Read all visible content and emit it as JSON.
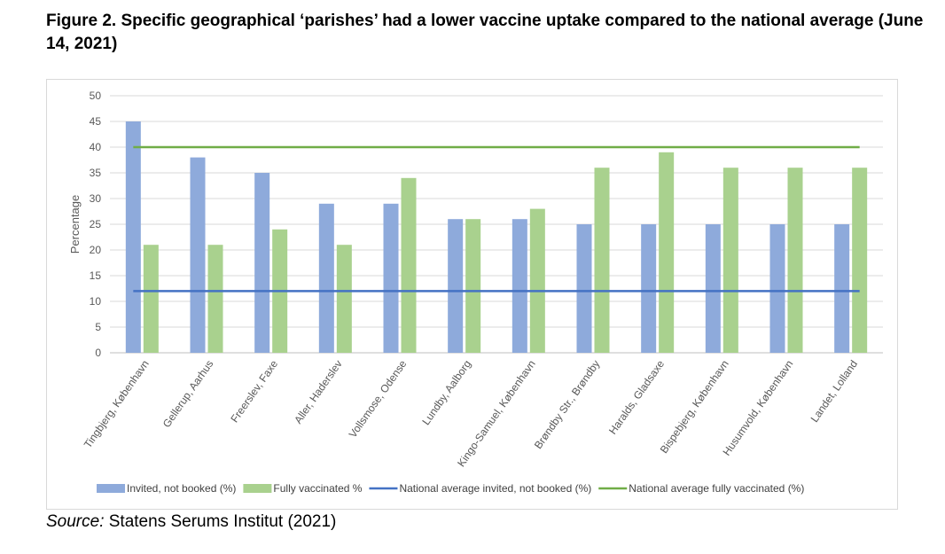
{
  "figure": {
    "title": "Figure 2. Specific geographical ‘parishes’ had a lower vaccine uptake compared to the national average (June 14, 2021)",
    "source_label": "Source:",
    "source_text": " Statens Serums Institut (2021)"
  },
  "chart_data": {
    "type": "bar",
    "title": "",
    "xlabel": "",
    "ylabel": "Percentage",
    "ylim": [
      0,
      50
    ],
    "yticks": [
      0,
      5,
      10,
      15,
      20,
      25,
      30,
      35,
      40,
      45,
      50
    ],
    "grid": true,
    "legend_position": "bottom",
    "categories": [
      "Tingbjerg, København",
      "Gellerup, Aarhus",
      "Freerslev, Faxe",
      "Aller, Haderslev",
      "Vollsmose, Odense",
      "Lundby, Aalborg",
      "Kingo-Samuel, København",
      "Brøndby Str., Brøndby",
      "Haralds, Gladsaxe",
      "Bispebjerg, København",
      "Husumvold, København",
      "Landet, Lolland"
    ],
    "series": [
      {
        "name": "Invited,  not booked (%)",
        "color": "#8eaadb",
        "values": [
          45,
          38,
          35,
          29,
          29,
          26,
          26,
          25,
          25,
          25,
          25,
          25
        ]
      },
      {
        "name": "Fully vaccinated %",
        "color": "#a9d18e",
        "values": [
          21,
          21,
          24,
          21,
          34,
          26,
          28,
          36,
          39,
          36,
          36,
          36
        ]
      }
    ],
    "reference_lines": [
      {
        "name": "National average invited, not booked (%)",
        "color": "#4472c4",
        "value": 12
      },
      {
        "name": "National average fully vaccinated (%)",
        "color": "#70ad47",
        "value": 40
      }
    ]
  }
}
